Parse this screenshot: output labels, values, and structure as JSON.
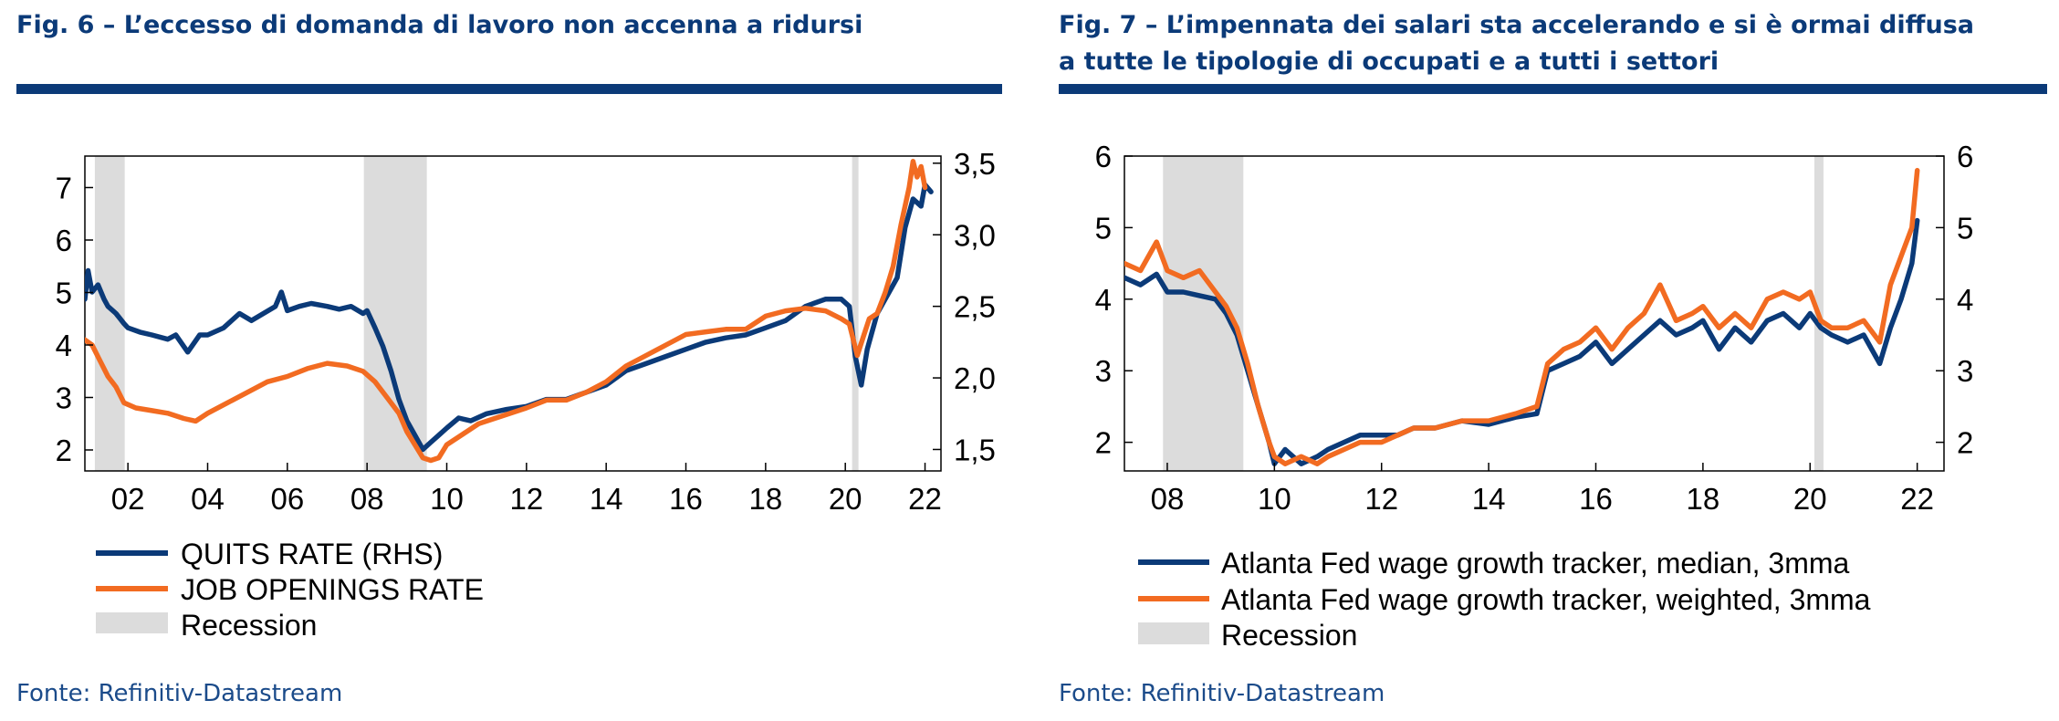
{
  "colors": {
    "navy": "#0b3a78",
    "orange": "#f26b21",
    "recession": "#dcdcdc",
    "source": "#1b4b8a"
  },
  "left": {
    "title": "Fig. 6 – L’eccesso di domanda di lavoro non accenna a ridursi",
    "source": "Fonte: Refinitiv-Datastream",
    "legend": [
      "QUITS RATE (RHS)",
      "JOB OPENINGS RATE",
      "Recession"
    ]
  },
  "right": {
    "title_line1": "Fig. 7 – L’impennata dei salari sta accelerando e si è ormai diffusa",
    "title_line2": "a tutte le tipologie di occupati e a tutti i settori",
    "source": "Fonte: Refinitiv-Datastream",
    "legend": [
      "Atlanta Fed wage growth tracker, median, 3mma",
      "Atlanta Fed wage growth tracker, weighted, 3mma",
      "Recession"
    ]
  },
  "chart_data": [
    {
      "type": "line",
      "title": "Fig. 6 – L’eccesso di domanda di lavoro non accenna a ridursi",
      "xlim": [
        2000.92,
        2022.4
      ],
      "x_ticks": [
        2002,
        2004,
        2006,
        2008,
        2010,
        2012,
        2014,
        2016,
        2018,
        2020,
        2022
      ],
      "x_tick_labels": [
        "02",
        "04",
        "06",
        "08",
        "10",
        "12",
        "14",
        "16",
        "18",
        "20",
        "22"
      ],
      "ylim_left": [
        1.6,
        7.6
      ],
      "y_ticks_left": [
        2,
        3,
        4,
        5,
        6,
        7
      ],
      "y_tick_labels_left": [
        "2",
        "3",
        "4",
        "5",
        "6",
        "7"
      ],
      "ylim_right": [
        1.35,
        3.55
      ],
      "y_ticks_right": [
        1.5,
        2.0,
        2.5,
        3.0,
        3.5
      ],
      "y_tick_labels_right": [
        "1,5",
        "2,0",
        "2,5",
        "3,0",
        "3,5"
      ],
      "recessions": [
        [
          2001.17,
          2001.92
        ],
        [
          2007.92,
          2009.5
        ],
        [
          2020.17,
          2020.33
        ]
      ],
      "legend": [
        "QUITS RATE (RHS)",
        "JOB OPENINGS RATE",
        "Recession"
      ],
      "series": [
        {
          "name": "QUITS RATE (RHS)",
          "axis": "right",
          "color": "#0b3a78",
          "x": [
            2000.92,
            2001.0,
            2001.1,
            2001.25,
            2001.4,
            2001.5,
            2001.7,
            2001.9,
            2002.0,
            2002.3,
            2002.6,
            2003.0,
            2003.2,
            2003.5,
            2003.8,
            2004.0,
            2004.4,
            2004.8,
            2005.1,
            2005.4,
            2005.7,
            2005.85,
            2006.0,
            2006.3,
            2006.6,
            2007.0,
            2007.3,
            2007.6,
            2007.9,
            2008.0,
            2008.2,
            2008.4,
            2008.6,
            2008.8,
            2009.0,
            2009.2,
            2009.4,
            2009.6,
            2009.8,
            2010.0,
            2010.3,
            2010.6,
            2011.0,
            2011.5,
            2012.0,
            2012.5,
            2013.0,
            2013.5,
            2014.0,
            2014.5,
            2015.0,
            2015.5,
            2016.0,
            2016.5,
            2017.0,
            2017.5,
            2018.0,
            2018.5,
            2019.0,
            2019.5,
            2019.9,
            2020.1,
            2020.25,
            2020.4,
            2020.55,
            2020.8,
            2021.0,
            2021.3,
            2021.5,
            2021.7,
            2021.9,
            2022.0,
            2022.15
          ],
          "y": [
            2.55,
            2.75,
            2.6,
            2.65,
            2.55,
            2.5,
            2.45,
            2.38,
            2.35,
            2.32,
            2.3,
            2.27,
            2.3,
            2.18,
            2.3,
            2.3,
            2.35,
            2.45,
            2.4,
            2.45,
            2.5,
            2.6,
            2.47,
            2.5,
            2.52,
            2.5,
            2.48,
            2.5,
            2.45,
            2.47,
            2.35,
            2.22,
            2.05,
            1.85,
            1.7,
            1.6,
            1.5,
            1.55,
            1.6,
            1.65,
            1.72,
            1.7,
            1.75,
            1.78,
            1.8,
            1.85,
            1.85,
            1.9,
            1.95,
            2.05,
            2.1,
            2.15,
            2.2,
            2.25,
            2.28,
            2.3,
            2.35,
            2.4,
            2.5,
            2.55,
            2.55,
            2.5,
            2.15,
            1.95,
            2.2,
            2.45,
            2.55,
            2.7,
            3.05,
            3.25,
            3.2,
            3.35,
            3.3
          ]
        },
        {
          "name": "JOB OPENINGS RATE",
          "axis": "left",
          "color": "#f26b21",
          "x": [
            2000.92,
            2001.1,
            2001.3,
            2001.5,
            2001.7,
            2001.9,
            2002.2,
            2002.6,
            2003.0,
            2003.4,
            2003.7,
            2004.0,
            2004.5,
            2005.0,
            2005.5,
            2006.0,
            2006.5,
            2007.0,
            2007.5,
            2007.9,
            2008.2,
            2008.5,
            2008.8,
            2009.0,
            2009.2,
            2009.4,
            2009.6,
            2009.8,
            2010.0,
            2010.4,
            2010.8,
            2011.2,
            2011.6,
            2012.0,
            2012.5,
            2013.0,
            2013.5,
            2014.0,
            2014.5,
            2015.0,
            2015.5,
            2016.0,
            2016.5,
            2017.0,
            2017.5,
            2018.0,
            2018.5,
            2019.0,
            2019.5,
            2019.9,
            2020.1,
            2020.3,
            2020.45,
            2020.6,
            2020.8,
            2021.0,
            2021.2,
            2021.4,
            2021.6,
            2021.7,
            2021.8,
            2021.9,
            2022.0
          ],
          "y": [
            4.1,
            4.0,
            3.7,
            3.4,
            3.2,
            2.9,
            2.8,
            2.75,
            2.7,
            2.6,
            2.55,
            2.7,
            2.9,
            3.1,
            3.3,
            3.4,
            3.55,
            3.65,
            3.6,
            3.5,
            3.3,
            3.0,
            2.7,
            2.35,
            2.1,
            1.85,
            1.8,
            1.85,
            2.1,
            2.3,
            2.5,
            2.6,
            2.7,
            2.8,
            2.95,
            2.95,
            3.1,
            3.3,
            3.6,
            3.8,
            4.0,
            4.2,
            4.25,
            4.3,
            4.3,
            4.55,
            4.65,
            4.7,
            4.65,
            4.5,
            4.4,
            3.8,
            4.15,
            4.5,
            4.6,
            5.0,
            5.5,
            6.3,
            7.0,
            7.5,
            7.2,
            7.4,
            7.0
          ]
        }
      ]
    },
    {
      "type": "line",
      "title": "Fig. 7 – L’impennata dei salari sta accelerando e si è ormai diffusa a tutte le tipologie di occupati e a tutti i settori",
      "xlim": [
        2007.2,
        2022.5
      ],
      "x_ticks": [
        2008,
        2010,
        2012,
        2014,
        2016,
        2018,
        2020,
        2022
      ],
      "x_tick_labels": [
        "08",
        "10",
        "12",
        "14",
        "16",
        "18",
        "20",
        "22"
      ],
      "ylim_left": [
        1.6,
        6.0
      ],
      "y_ticks_left": [
        2,
        3,
        4,
        5,
        6
      ],
      "y_tick_labels_left": [
        "2",
        "3",
        "4",
        "5",
        "6"
      ],
      "ylim_right": [
        1.6,
        6.0
      ],
      "y_ticks_right": [
        2,
        3,
        4,
        5,
        6
      ],
      "y_tick_labels_right": [
        "2",
        "3",
        "4",
        "5",
        "6"
      ],
      "recessions": [
        [
          2007.92,
          2009.42
        ],
        [
          2020.08,
          2020.25
        ]
      ],
      "legend": [
        "Atlanta Fed wage growth tracker, median, 3mma",
        "Atlanta Fed wage growth tracker, weighted, 3mma",
        "Recession"
      ],
      "series": [
        {
          "name": "Atlanta Fed wage growth tracker, median, 3mma",
          "axis": "left",
          "color": "#0b3a78",
          "x": [
            2007.2,
            2007.5,
            2007.8,
            2008.0,
            2008.3,
            2008.6,
            2008.9,
            2009.1,
            2009.3,
            2009.5,
            2009.7,
            2009.9,
            2010.0,
            2010.2,
            2010.5,
            2010.8,
            2011.0,
            2011.3,
            2011.6,
            2012.0,
            2012.3,
            2012.6,
            2013.0,
            2013.5,
            2014.0,
            2014.5,
            2014.9,
            2015.1,
            2015.4,
            2015.7,
            2016.0,
            2016.3,
            2016.6,
            2016.9,
            2017.2,
            2017.5,
            2017.8,
            2018.0,
            2018.3,
            2018.6,
            2018.9,
            2019.2,
            2019.5,
            2019.8,
            2020.0,
            2020.2,
            2020.4,
            2020.7,
            2021.0,
            2021.3,
            2021.5,
            2021.7,
            2021.9,
            2022.0
          ],
          "y": [
            4.3,
            4.2,
            4.35,
            4.1,
            4.1,
            4.05,
            4.0,
            3.8,
            3.5,
            3.0,
            2.5,
            2.0,
            1.7,
            1.9,
            1.7,
            1.8,
            1.9,
            2.0,
            2.1,
            2.1,
            2.1,
            2.2,
            2.2,
            2.3,
            2.25,
            2.35,
            2.4,
            3.0,
            3.1,
            3.2,
            3.4,
            3.1,
            3.3,
            3.5,
            3.7,
            3.5,
            3.6,
            3.7,
            3.3,
            3.6,
            3.4,
            3.7,
            3.8,
            3.6,
            3.8,
            3.6,
            3.5,
            3.4,
            3.5,
            3.1,
            3.6,
            4.0,
            4.5,
            5.1
          ]
        },
        {
          "name": "Atlanta Fed wage growth tracker, weighted, 3mma",
          "axis": "left",
          "color": "#f26b21",
          "x": [
            2007.2,
            2007.5,
            2007.8,
            2008.0,
            2008.3,
            2008.6,
            2008.9,
            2009.1,
            2009.3,
            2009.5,
            2009.7,
            2009.9,
            2010.0,
            2010.2,
            2010.5,
            2010.8,
            2011.0,
            2011.3,
            2011.6,
            2012.0,
            2012.3,
            2012.6,
            2013.0,
            2013.5,
            2014.0,
            2014.5,
            2014.9,
            2015.1,
            2015.4,
            2015.7,
            2016.0,
            2016.3,
            2016.6,
            2016.9,
            2017.2,
            2017.5,
            2017.8,
            2018.0,
            2018.3,
            2018.6,
            2018.9,
            2019.2,
            2019.5,
            2019.8,
            2020.0,
            2020.2,
            2020.4,
            2020.7,
            2021.0,
            2021.3,
            2021.5,
            2021.7,
            2021.9,
            2022.0
          ],
          "y": [
            4.5,
            4.4,
            4.8,
            4.4,
            4.3,
            4.4,
            4.1,
            3.9,
            3.6,
            3.1,
            2.5,
            2.0,
            1.8,
            1.7,
            1.8,
            1.7,
            1.8,
            1.9,
            2.0,
            2.0,
            2.1,
            2.2,
            2.2,
            2.3,
            2.3,
            2.4,
            2.5,
            3.1,
            3.3,
            3.4,
            3.6,
            3.3,
            3.6,
            3.8,
            4.2,
            3.7,
            3.8,
            3.9,
            3.6,
            3.8,
            3.6,
            4.0,
            4.1,
            4.0,
            4.1,
            3.7,
            3.6,
            3.6,
            3.7,
            3.4,
            4.2,
            4.6,
            5.0,
            5.8
          ]
        }
      ]
    }
  ]
}
